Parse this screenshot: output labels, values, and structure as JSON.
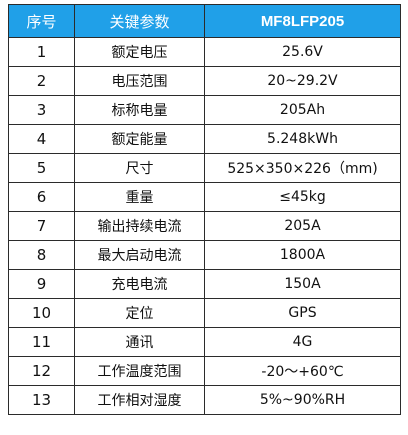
{
  "table": {
    "headers": {
      "index": "序号",
      "param": "关键参数",
      "model": "MF8LFP205"
    },
    "rows": [
      {
        "no": "1",
        "name": "额定电压",
        "value": "25.6V"
      },
      {
        "no": "2",
        "name": "电压范围",
        "value": "20~29.2V"
      },
      {
        "no": "3",
        "name": "标称电量",
        "value": "205Ah"
      },
      {
        "no": "4",
        "name": "额定能量",
        "value": "5.248kWh"
      },
      {
        "no": "5",
        "name": "尺寸",
        "value": "525×350×226（mm)"
      },
      {
        "no": "6",
        "name": "重量",
        "value": "≤45kg"
      },
      {
        "no": "7",
        "name": "输出持续电流",
        "value": "205A"
      },
      {
        "no": "8",
        "name": "最大启动电流",
        "value": "1800A"
      },
      {
        "no": "9",
        "name": "充电电流",
        "value": "150A"
      },
      {
        "no": "10",
        "name": "定位",
        "value": "GPS"
      },
      {
        "no": "11",
        "name": "通讯",
        "value": "4G"
      },
      {
        "no": "12",
        "name": "工作温度范围",
        "value": "-20～+60℃"
      },
      {
        "no": "13",
        "name": "工作相对湿度",
        "value": "5%~90%RH"
      }
    ]
  },
  "colors": {
    "header_bg": "#20a0e8",
    "header_text": "#ffffff",
    "border": "#2b2b2b",
    "cell_text": "#111111"
  }
}
